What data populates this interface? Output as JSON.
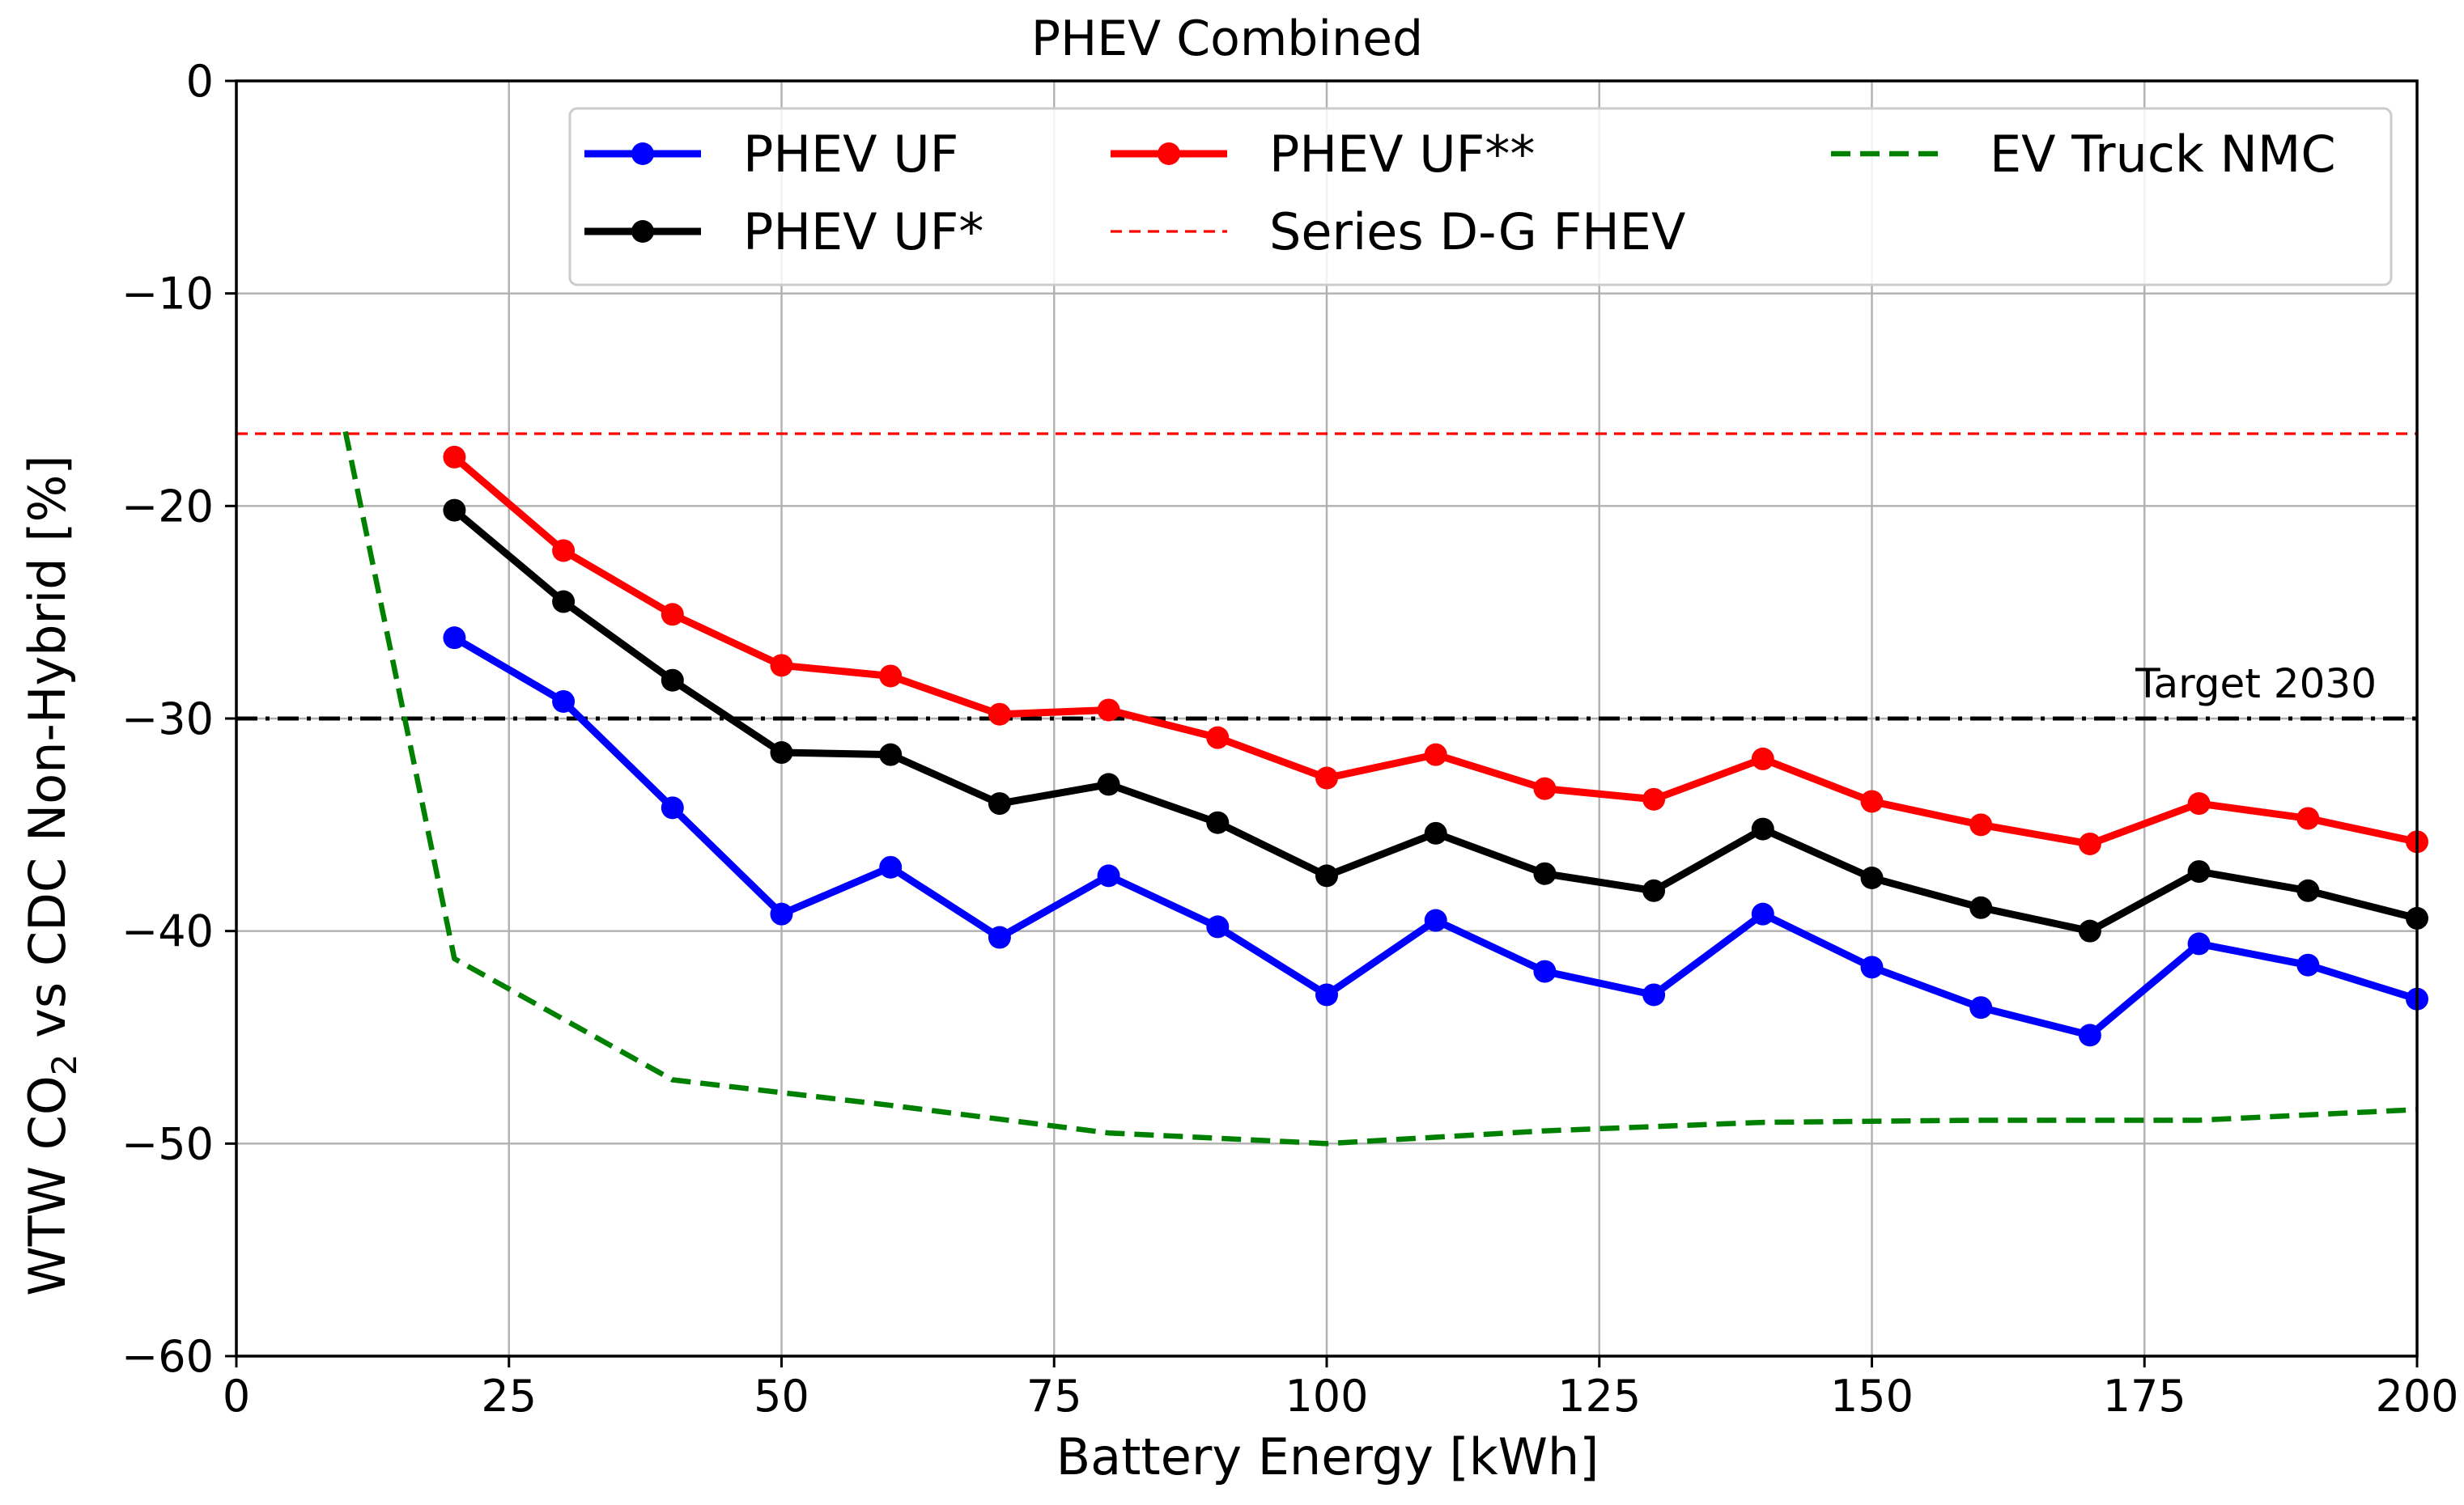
{
  "chart_data": {
    "type": "line",
    "title": "PHEV Combined",
    "xlabel": "Battery Energy [kWh]",
    "ylabel": {
      "pre": "WTW CO",
      "sub": "2",
      "post": " vs CDC Non-Hybrid [%]"
    },
    "xlim": [
      0,
      200
    ],
    "ylim": [
      -60,
      0
    ],
    "xticks": [
      0,
      25,
      50,
      75,
      100,
      125,
      150,
      175,
      200
    ],
    "yticks": [
      0,
      -10,
      -20,
      -30,
      -40,
      -50,
      -60
    ],
    "xtick_labels": [
      "0",
      "25",
      "50",
      "75",
      "100",
      "125",
      "150",
      "175",
      "200"
    ],
    "ytick_labels": [
      "0",
      "−10",
      "−20",
      "−30",
      "−40",
      "−50",
      "−60"
    ],
    "grid": true,
    "legend_position": "top-right",
    "series": [
      {
        "name": "PHEV UF",
        "color": "#0000ff",
        "style": "solid-marker",
        "x": [
          20,
          30,
          40,
          50,
          60,
          70,
          80,
          90,
          100,
          110,
          120,
          130,
          140,
          150,
          160,
          170,
          180,
          190,
          200
        ],
        "y": [
          -26.2,
          -29.2,
          -34.2,
          -39.2,
          -37.0,
          -40.3,
          -37.4,
          -39.8,
          -43.0,
          -39.5,
          -41.9,
          -43.0,
          -39.2,
          -41.7,
          -43.6,
          -44.9,
          -40.6,
          -41.6,
          -43.2
        ]
      },
      {
        "name": "PHEV UF*",
        "color": "#000000",
        "style": "solid-marker",
        "x": [
          20,
          30,
          40,
          50,
          60,
          70,
          80,
          90,
          100,
          110,
          120,
          130,
          140,
          150,
          160,
          170,
          180,
          190,
          200
        ],
        "y": [
          -20.2,
          -24.5,
          -28.2,
          -31.6,
          -31.7,
          -34.0,
          -33.1,
          -34.9,
          -37.4,
          -35.4,
          -37.3,
          -38.1,
          -35.2,
          -37.5,
          -38.9,
          -40.0,
          -37.2,
          -38.1,
          -39.4
        ]
      },
      {
        "name": "PHEV UF**",
        "color": "#ff0000",
        "style": "solid-marker",
        "x": [
          20,
          30,
          40,
          50,
          60,
          70,
          80,
          90,
          100,
          110,
          120,
          130,
          140,
          150,
          160,
          170,
          180,
          190,
          200
        ],
        "y": [
          -17.7,
          -22.1,
          -25.1,
          -27.5,
          -28.0,
          -29.8,
          -29.6,
          -30.9,
          -32.8,
          -31.7,
          -33.3,
          -33.8,
          -31.9,
          -33.9,
          -35.0,
          -35.9,
          -34.0,
          -34.7,
          -35.8
        ]
      },
      {
        "name": "Series D-G FHEV",
        "color": "#ff0000",
        "style": "dashed-thin",
        "x": [
          0,
          200
        ],
        "y": [
          -16.6,
          -16.6
        ]
      },
      {
        "name": "EV Truck NMC",
        "color": "#008000",
        "style": "dashed",
        "x": [
          10,
          20,
          40,
          60,
          80,
          100,
          120,
          140,
          160,
          180,
          200
        ],
        "y": [
          -16.5,
          -41.3,
          -47.0,
          -48.2,
          -49.5,
          -50.0,
          -49.4,
          -49.0,
          -48.9,
          -48.9,
          -48.4
        ]
      }
    ],
    "reference_lines": [
      {
        "label": "Target 2030",
        "y": -30,
        "color": "#000000",
        "style": "dash-dot"
      }
    ]
  }
}
